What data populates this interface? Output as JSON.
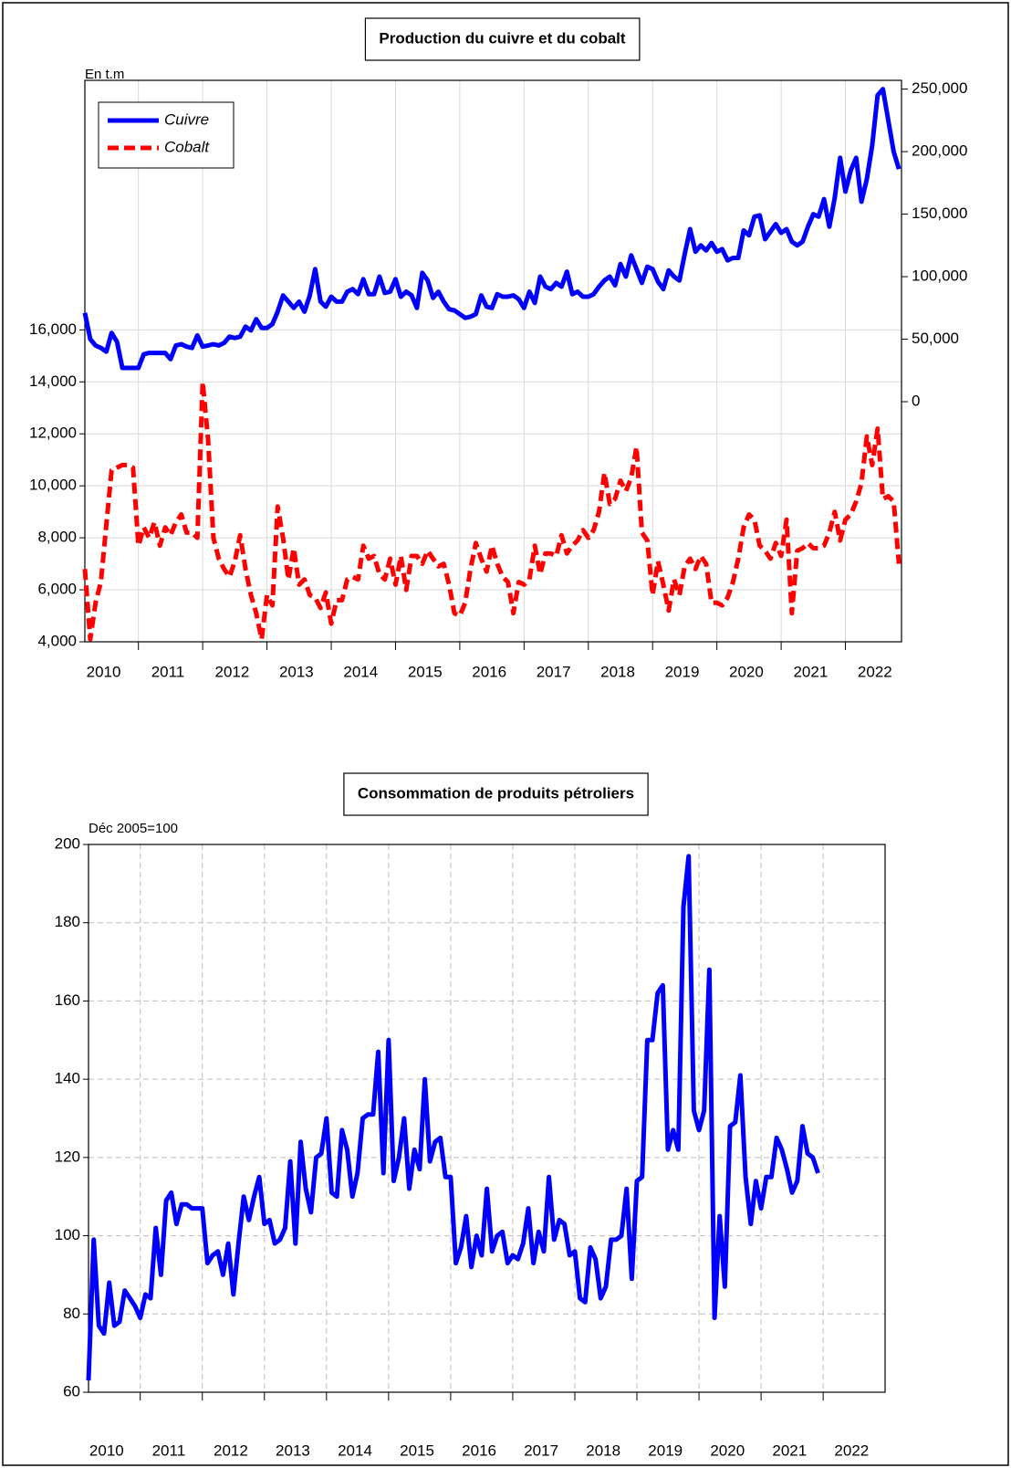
{
  "chart_data": [
    {
      "type": "line",
      "title": "Production du cuivre et du cobalt",
      "ylabel": "En t.m",
      "legend": "upper left",
      "grid": true,
      "categories": [
        null,
        null,
        null,
        null,
        "2010",
        null,
        null,
        null,
        null,
        null,
        null,
        null,
        null,
        null,
        null,
        null,
        "2011",
        null,
        null,
        null,
        null,
        null,
        null,
        null,
        null,
        null,
        null,
        null,
        "2012",
        null,
        null,
        null,
        null,
        null,
        null,
        null,
        null,
        null,
        null,
        null,
        "2013",
        null,
        null,
        null,
        null,
        null,
        null,
        null,
        null,
        null,
        null,
        null,
        "2014",
        null,
        null,
        null,
        null,
        null,
        null,
        null,
        null,
        null,
        null,
        null,
        "2015",
        null,
        null,
        null,
        null,
        null,
        null,
        null,
        null,
        null,
        null,
        null,
        "2016",
        null,
        null,
        null,
        null,
        null,
        null,
        null,
        null,
        null,
        null,
        null,
        "2017",
        null,
        null,
        null,
        null,
        null,
        null,
        null,
        null,
        null,
        null,
        null,
        "2018",
        null,
        null,
        null,
        null,
        null,
        null,
        null,
        null,
        null,
        null,
        null,
        "2019",
        null,
        null,
        null,
        null,
        null,
        null,
        null,
        null,
        null,
        null,
        null,
        "2020",
        null,
        null,
        null,
        null,
        null,
        null,
        null,
        null,
        null,
        null,
        null,
        "2021",
        null,
        null,
        null,
        null,
        null,
        null,
        null,
        null,
        null,
        null,
        null,
        "2022",
        null,
        null,
        null,
        null
      ],
      "ylim": [
        4000,
        25600
      ],
      "yticks": [
        {
          "value": 4000,
          "label": "4,000"
        },
        {
          "value": 6000,
          "label": "6,000"
        },
        {
          "value": 8000,
          "label": "8,000"
        },
        {
          "value": 10000,
          "label": "10,000"
        },
        {
          "value": 12000,
          "label": "12,000"
        },
        {
          "value": 14000,
          "label": "14,000"
        },
        {
          "value": 16000,
          "label": "16,000"
        }
      ],
      "y2lim": [
        -192000,
        257000
      ],
      "y2ticks": [
        0,
        {
          "value": 50000,
          "label": "50,000"
        },
        {
          "value": 100000,
          "label": "100,000"
        },
        {
          "value": 150000,
          "label": "150,000"
        },
        {
          "value": 200000,
          "label": "200,000"
        },
        {
          "value": 250000,
          "label": "250,000"
        }
      ],
      "series": [
        {
          "name": "Cuivre",
          "color": "#0000ff",
          "axis": "y2",
          "linestyle": "solid",
          "values": [
            71000,
            50000,
            45000,
            43000,
            40000,
            55000,
            48000,
            27000,
            27000,
            27000,
            27000,
            38000,
            39000,
            39000,
            39000,
            39000,
            34000,
            45000,
            46000,
            44000,
            43000,
            53000,
            44000,
            45000,
            46000,
            45000,
            47000,
            52000,
            51000,
            52000,
            60000,
            57000,
            66000,
            59000,
            59000,
            62000,
            72000,
            85000,
            80000,
            75000,
            80000,
            72000,
            85000,
            106000,
            80000,
            76000,
            84000,
            80000,
            80000,
            88000,
            90000,
            86000,
            98000,
            86000,
            86000,
            100000,
            87000,
            88000,
            98000,
            84000,
            88000,
            85000,
            75000,
            103000,
            97000,
            83000,
            88000,
            80000,
            74000,
            73000,
            70000,
            67000,
            68000,
            70000,
            85000,
            76000,
            75000,
            86000,
            84000,
            84000,
            85000,
            82000,
            75000,
            88000,
            79000,
            100000,
            92000,
            90000,
            95000,
            92000,
            104000,
            86000,
            88000,
            84000,
            84000,
            86000,
            92000,
            97000,
            100000,
            93000,
            110000,
            100000,
            117000,
            106000,
            95000,
            108000,
            106000,
            96000,
            90000,
            105000,
            100000,
            97000,
            118000,
            138000,
            120000,
            125000,
            121000,
            127000,
            120000,
            122000,
            113000,
            115000,
            115000,
            137000,
            133000,
            148000,
            149000,
            130000,
            136000,
            142000,
            135000,
            138000,
            128000,
            125000,
            128000,
            140000,
            150000,
            148000,
            162000,
            140000,
            163000,
            195000,
            168000,
            185000,
            195000,
            160000,
            178000,
            205000,
            245000,
            250000,
            225000,
            200000,
            186000
          ]
        },
        {
          "name": "Cobalt",
          "color": "#ff0000",
          "linestyle": "dashed",
          "values": [
            6800,
            4100,
            5500,
            6300,
            8500,
            10600,
            10700,
            10800,
            10800,
            10700,
            7700,
            8400,
            8000,
            8600,
            7700,
            8400,
            8100,
            8600,
            8900,
            8200,
            8200,
            8000,
            14000,
            11800,
            8000,
            7200,
            6800,
            6500,
            7100,
            8100,
            6800,
            5800,
            5100,
            4100,
            5800,
            5400,
            9200,
            8000,
            6400,
            7600,
            6200,
            6400,
            5800,
            5700,
            5300,
            5900,
            4700,
            5600,
            5600,
            6400,
            6500,
            6400,
            7700,
            7200,
            7300,
            6600,
            6400,
            7200,
            6200,
            7300,
            6000,
            7300,
            7300,
            7000,
            7500,
            7200,
            6900,
            7000,
            6200,
            5100,
            5000,
            5500,
            6800,
            7800,
            7200,
            6700,
            7700,
            7000,
            6500,
            6300,
            5100,
            6300,
            6200,
            6400,
            7700,
            6600,
            7400,
            7400,
            7300,
            8100,
            7400,
            7700,
            7900,
            8300,
            8000,
            8300,
            9000,
            10500,
            9300,
            9500,
            10200,
            9800,
            10300,
            11500,
            8200,
            7900,
            5800,
            7100,
            6200,
            5200,
            6400,
            5800,
            6900,
            7200,
            6800,
            7300,
            7000,
            5500,
            5500,
            5400,
            5700,
            6300,
            7200,
            8400,
            8900,
            8700,
            7700,
            7500,
            7200,
            7800,
            7300,
            8700,
            5100,
            7500,
            7600,
            7800,
            7600,
            7600,
            7700,
            8200,
            9000,
            7900,
            8700,
            8900,
            9400,
            10100,
            11900,
            10800,
            12200,
            9500,
            9600,
            9400,
            7000
          ]
        }
      ]
    },
    {
      "type": "line",
      "title": "Consommation de produits pétroliers",
      "ylabel": "Déc 2005=100",
      "grid": true,
      "color": "#0000ff",
      "categories": [
        null,
        null,
        null,
        null,
        "2010",
        null,
        null,
        null,
        null,
        null,
        null,
        null,
        null,
        null,
        null,
        null,
        "2011",
        null,
        null,
        null,
        null,
        null,
        null,
        null,
        null,
        null,
        null,
        null,
        "2012",
        null,
        null,
        null,
        null,
        null,
        null,
        null,
        null,
        null,
        null,
        null,
        "2013",
        null,
        null,
        null,
        null,
        null,
        null,
        null,
        null,
        null,
        null,
        null,
        "2014",
        null,
        null,
        null,
        null,
        null,
        null,
        null,
        null,
        null,
        null,
        null,
        "2015",
        null,
        null,
        null,
        null,
        null,
        null,
        null,
        null,
        null,
        null,
        null,
        "2016",
        null,
        null,
        null,
        null,
        null,
        null,
        null,
        null,
        null,
        null,
        null,
        "2017",
        null,
        null,
        null,
        null,
        null,
        null,
        null,
        null,
        null,
        null,
        null,
        "2018",
        null,
        null,
        null,
        null,
        null,
        null,
        null,
        null,
        null,
        null,
        null,
        "2019",
        null,
        null,
        null,
        null,
        null,
        null,
        null,
        null,
        null,
        null,
        null,
        "2020",
        null,
        null,
        null,
        null,
        null,
        null,
        null,
        null,
        null,
        null,
        null,
        "2021",
        null,
        null,
        null,
        null,
        null,
        null,
        null,
        null,
        null,
        null,
        null,
        "2022",
        null,
        null,
        null,
        null,
        null
      ],
      "ylim": [
        60,
        200
      ],
      "yticks": [
        60,
        80,
        100,
        120,
        140,
        160,
        180,
        200
      ],
      "values": [
        63,
        99,
        77,
        75,
        88,
        77,
        78,
        86,
        84,
        82,
        79,
        85,
        84,
        102,
        90,
        109,
        111,
        103,
        108,
        108,
        107,
        107,
        107,
        93,
        95,
        96,
        90,
        98,
        85,
        98,
        110,
        104,
        110,
        115,
        103,
        104,
        98,
        99,
        102,
        119,
        98,
        124,
        112,
        106,
        120,
        121,
        130,
        111,
        110,
        127,
        122,
        110,
        116,
        130,
        131,
        131,
        147,
        116,
        150,
        114,
        120,
        130,
        112,
        122,
        117,
        140,
        119,
        124,
        125,
        115,
        115,
        93,
        97,
        105,
        92,
        100,
        95,
        112,
        96,
        100,
        101,
        93,
        95,
        94,
        98,
        107,
        93,
        101,
        96,
        115,
        99,
        104,
        103,
        95,
        96,
        84,
        83,
        97,
        94,
        84,
        87,
        99,
        99,
        100,
        112,
        89,
        114,
        115,
        150,
        150,
        162,
        164,
        122,
        127,
        122,
        184,
        197,
        132,
        127,
        132,
        168,
        79,
        105,
        87,
        128,
        129,
        141,
        115,
        103,
        114,
        107,
        115,
        115,
        125,
        122,
        117,
        111,
        114,
        128,
        121,
        120,
        116,
        null,
        null,
        null,
        null,
        null,
        null,
        null,
        null,
        null,
        null,
        null,
        null
      ]
    }
  ]
}
